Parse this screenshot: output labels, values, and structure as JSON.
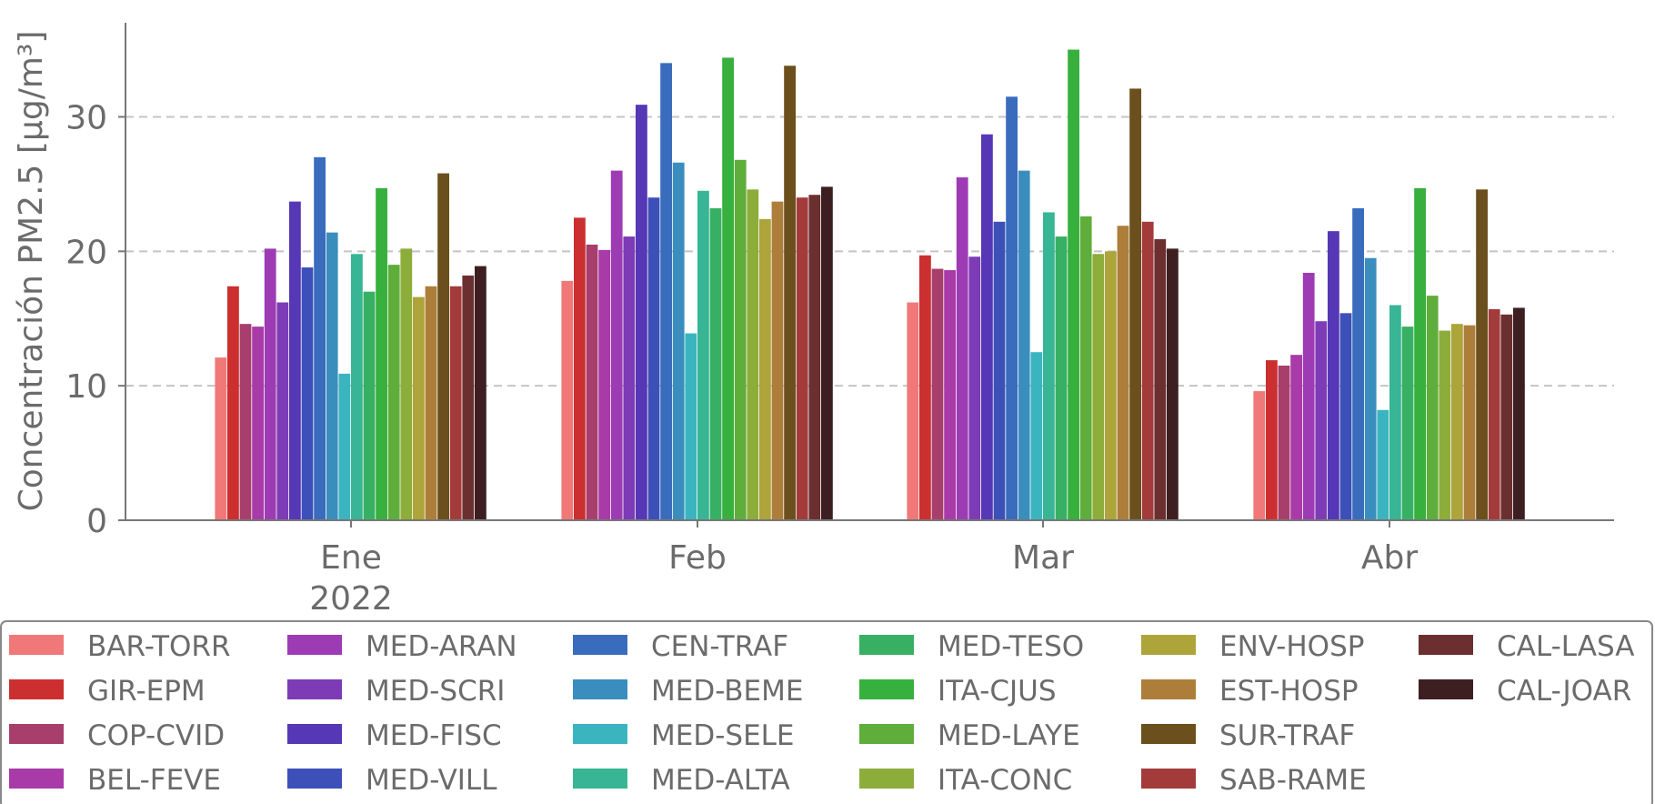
{
  "chart_data": {
    "type": "bar",
    "title": "",
    "xlabel": "",
    "ylabel": "Concentración PM2.5 [μg/m³]",
    "categories": [
      "Ene",
      "Feb",
      "Mar",
      "Abr"
    ],
    "x_sublabel": "2022",
    "ylim": [
      0,
      37
    ],
    "yticks": [
      0,
      10,
      20,
      30
    ],
    "grid": "horizontal dashed",
    "legend_position": "bottom",
    "legend_columns": 6,
    "series": [
      {
        "name": "BAR-TORR",
        "color": "#f07878",
        "values": [
          12.1,
          17.8,
          16.2,
          9.6
        ]
      },
      {
        "name": "GIR-EPM",
        "color": "#cc2f2f",
        "values": [
          17.4,
          22.5,
          19.7,
          11.9
        ]
      },
      {
        "name": "COP-CVID",
        "color": "#a83e6c",
        "values": [
          14.6,
          20.5,
          18.7,
          11.5
        ]
      },
      {
        "name": "BEL-FEVE",
        "color": "#a83ba8",
        "values": [
          14.4,
          20.1,
          18.6,
          12.3
        ]
      },
      {
        "name": "MED-ARAN",
        "color": "#9d3bb5",
        "values": [
          20.2,
          26.0,
          25.5,
          18.4
        ]
      },
      {
        "name": "MED-SCRI",
        "color": "#7d3bb5",
        "values": [
          16.2,
          21.1,
          19.6,
          14.8
        ]
      },
      {
        "name": "MED-FISC",
        "color": "#5637b5",
        "values": [
          23.7,
          30.9,
          28.7,
          21.5
        ]
      },
      {
        "name": "MED-VILL",
        "color": "#3d4fb8",
        "values": [
          18.8,
          24.0,
          22.2,
          15.4
        ]
      },
      {
        "name": "CEN-TRAF",
        "color": "#3a6cbd",
        "values": [
          27.0,
          34.0,
          31.5,
          23.2
        ]
      },
      {
        "name": "MED-BEME",
        "color": "#3a8ebd",
        "values": [
          21.4,
          26.6,
          26.0,
          19.5
        ]
      },
      {
        "name": "MED-SELE",
        "color": "#3ab5c0",
        "values": [
          10.9,
          13.9,
          12.5,
          8.2
        ]
      },
      {
        "name": "MED-ALTA",
        "color": "#37b594",
        "values": [
          19.8,
          24.5,
          22.9,
          16.0
        ]
      },
      {
        "name": "MED-TESO",
        "color": "#37b063",
        "values": [
          17.0,
          23.2,
          21.1,
          14.4
        ]
      },
      {
        "name": "ITA-CJUS",
        "color": "#37b03e",
        "values": [
          24.7,
          34.4,
          35.0,
          24.7
        ]
      },
      {
        "name": "MED-LAYE",
        "color": "#5fad3a",
        "values": [
          19.0,
          26.8,
          22.6,
          16.7
        ]
      },
      {
        "name": "ITA-CONC",
        "color": "#8dad3a",
        "values": [
          20.2,
          24.6,
          19.8,
          14.1
        ]
      },
      {
        "name": "ENV-HOSP",
        "color": "#ada43a",
        "values": [
          16.6,
          22.4,
          20.0,
          14.6
        ]
      },
      {
        "name": "EST-HOSP",
        "color": "#ad7e3a",
        "values": [
          17.4,
          23.7,
          21.9,
          14.5
        ]
      },
      {
        "name": "SUR-TRAF",
        "color": "#6b4f1c",
        "values": [
          25.8,
          33.8,
          32.1,
          24.6
        ]
      },
      {
        "name": "SAB-RAME",
        "color": "#a33b3b",
        "values": [
          17.4,
          24.0,
          22.2,
          15.7
        ]
      },
      {
        "name": "CAL-LASA",
        "color": "#6b2f2f",
        "values": [
          18.2,
          24.2,
          20.9,
          15.3
        ]
      },
      {
        "name": "CAL-JOAR",
        "color": "#3d1f22",
        "values": [
          18.9,
          24.8,
          20.2,
          15.8
        ]
      }
    ]
  }
}
